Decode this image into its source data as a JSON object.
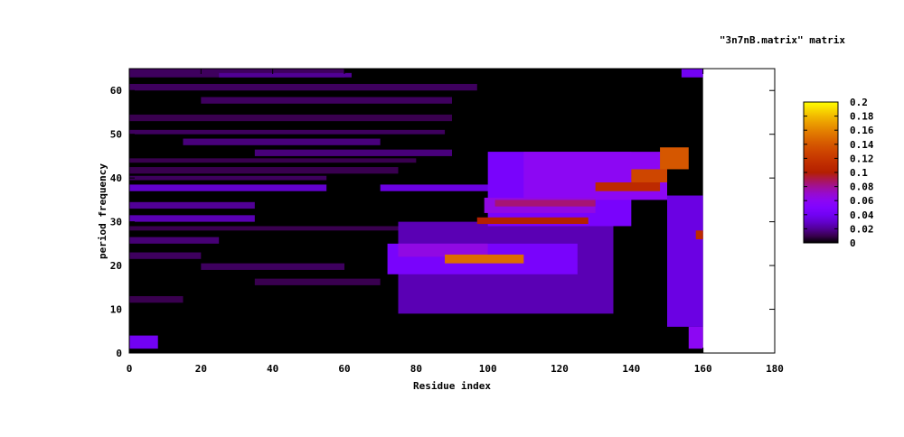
{
  "chart_data": {
    "type": "heatmap",
    "title": "\"3n7nB.matrix\" matrix",
    "xlabel": "Residue index",
    "ylabel": "period frequency",
    "xlim": [
      0,
      180
    ],
    "ylim": [
      0,
      65
    ],
    "data_xlim": [
      0,
      160
    ],
    "xticks": [
      "0",
      "20",
      "40",
      "60",
      "80",
      "100",
      "120",
      "140",
      "160",
      "180"
    ],
    "yticks": [
      "0",
      "10",
      "20",
      "30",
      "40",
      "50",
      "60"
    ],
    "colorbar": {
      "range": [
        0,
        0.2
      ],
      "ticks": [
        "0",
        "0.02",
        "0.04",
        "0.06",
        "0.08",
        "0.1",
        "0.12",
        "0.14",
        "0.16",
        "0.18",
        "0.2"
      ],
      "palette": "black-purple-red-orange-yellow"
    },
    "background_value": 0,
    "regions": [
      {
        "x": [
          0,
          60
        ],
        "y": [
          63,
          65
        ],
        "value": 0.012
      },
      {
        "x": [
          25,
          62
        ],
        "y": [
          63,
          64
        ],
        "value": 0.02
      },
      {
        "x": [
          0,
          97
        ],
        "y": [
          60,
          61.5
        ],
        "value": 0.012
      },
      {
        "x": [
          20,
          90
        ],
        "y": [
          57,
          58.5
        ],
        "value": 0.012
      },
      {
        "x": [
          0,
          90
        ],
        "y": [
          53,
          54.5
        ],
        "value": 0.01
      },
      {
        "x": [
          0,
          88
        ],
        "y": [
          50,
          51
        ],
        "value": 0.012
      },
      {
        "x": [
          15,
          70
        ],
        "y": [
          47.5,
          49
        ],
        "value": 0.016
      },
      {
        "x": [
          35,
          90
        ],
        "y": [
          45,
          46.5
        ],
        "value": 0.016
      },
      {
        "x": [
          0,
          80
        ],
        "y": [
          43.5,
          44.5
        ],
        "value": 0.01
      },
      {
        "x": [
          0,
          75
        ],
        "y": [
          41,
          42.5
        ],
        "value": 0.01
      },
      {
        "x": [
          0,
          55
        ],
        "y": [
          39.5,
          40.5
        ],
        "value": 0.012
      },
      {
        "x": [
          0,
          55
        ],
        "y": [
          37,
          38.5
        ],
        "value": 0.03
      },
      {
        "x": [
          70,
          110
        ],
        "y": [
          37,
          38.5
        ],
        "value": 0.035
      },
      {
        "x": [
          0,
          35
        ],
        "y": [
          33,
          34.5
        ],
        "value": 0.02
      },
      {
        "x": [
          0,
          35
        ],
        "y": [
          30,
          31.5
        ],
        "value": 0.025
      },
      {
        "x": [
          0,
          80
        ],
        "y": [
          28,
          29
        ],
        "value": 0.01
      },
      {
        "x": [
          0,
          25
        ],
        "y": [
          25,
          26.5
        ],
        "value": 0.015
      },
      {
        "x": [
          0,
          20
        ],
        "y": [
          21.5,
          23
        ],
        "value": 0.012
      },
      {
        "x": [
          20,
          60
        ],
        "y": [
          19,
          20.5
        ],
        "value": 0.012
      },
      {
        "x": [
          35,
          70
        ],
        "y": [
          15.5,
          17
        ],
        "value": 0.01
      },
      {
        "x": [
          0,
          15
        ],
        "y": [
          11.5,
          13
        ],
        "value": 0.01
      },
      {
        "x": [
          0,
          8
        ],
        "y": [
          1,
          4
        ],
        "value": 0.04
      },
      {
        "x": [
          75,
          135
        ],
        "y": [
          9,
          30
        ],
        "value": 0.025
      },
      {
        "x": [
          72,
          125
        ],
        "y": [
          18,
          25
        ],
        "value": 0.045
      },
      {
        "x": [
          75,
          100
        ],
        "y": [
          22,
          25
        ],
        "value": 0.065
      },
      {
        "x": [
          88,
          110
        ],
        "y": [
          20.5,
          22.5
        ],
        "value": 0.15
      },
      {
        "x": [
          100,
          140
        ],
        "y": [
          29,
          46
        ],
        "value": 0.045
      },
      {
        "x": [
          110,
          150
        ],
        "y": [
          35,
          46
        ],
        "value": 0.06
      },
      {
        "x": [
          99,
          130
        ],
        "y": [
          32,
          35.5
        ],
        "value": 0.065
      },
      {
        "x": [
          102,
          130
        ],
        "y": [
          33.5,
          35
        ],
        "value": 0.085
      },
      {
        "x": [
          97,
          128
        ],
        "y": [
          29.5,
          31
        ],
        "value": 0.1
      },
      {
        "x": [
          130,
          148
        ],
        "y": [
          37,
          39
        ],
        "value": 0.11
      },
      {
        "x": [
          140,
          150
        ],
        "y": [
          39,
          42
        ],
        "value": 0.13
      },
      {
        "x": [
          148,
          156
        ],
        "y": [
          42,
          47
        ],
        "value": 0.14
      },
      {
        "x": [
          150,
          160
        ],
        "y": [
          6,
          36
        ],
        "value": 0.035
      },
      {
        "x": [
          156,
          160
        ],
        "y": [
          1,
          6
        ],
        "value": 0.06
      },
      {
        "x": [
          158,
          160
        ],
        "y": [
          26,
          28
        ],
        "value": 0.11
      },
      {
        "x": [
          154,
          160
        ],
        "y": [
          63,
          65
        ],
        "value": 0.04
      }
    ]
  }
}
